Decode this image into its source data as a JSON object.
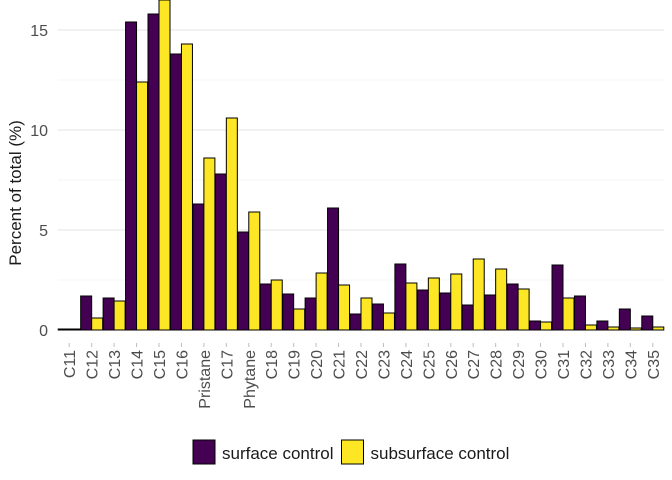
{
  "chart_data": {
    "type": "bar",
    "ylabel": "Percent of total (%)",
    "xlabel": "",
    "ylim": [
      0,
      16.5
    ],
    "yticks": [
      0,
      5,
      10,
      15
    ],
    "grid": true,
    "legend_position": "bottom",
    "categories": [
      "C11",
      "C12",
      "C13",
      "C14",
      "C15",
      "C16",
      "Pristane",
      "C17",
      "Phytane",
      "C18",
      "C19",
      "C20",
      "C21",
      "C22",
      "C23",
      "C24",
      "C25",
      "C26",
      "C27",
      "C28",
      "C29",
      "C30",
      "C31",
      "C32",
      "C33",
      "C34",
      "C35"
    ],
    "series": [
      {
        "name": "surface control",
        "color": "#440154",
        "values": [
          0.05,
          1.7,
          1.6,
          15.4,
          15.8,
          13.8,
          6.3,
          7.8,
          4.9,
          2.3,
          1.8,
          1.6,
          6.1,
          0.8,
          1.3,
          3.3,
          2.0,
          1.85,
          1.25,
          1.75,
          2.3,
          0.45,
          3.25,
          1.7,
          0.45,
          1.05,
          0.7
        ]
      },
      {
        "name": "subsurface control",
        "color": "#FDE725",
        "values": [
          0.05,
          0.6,
          1.45,
          12.4,
          16.5,
          14.3,
          8.6,
          10.6,
          5.9,
          2.5,
          1.05,
          2.85,
          2.25,
          1.6,
          0.85,
          2.35,
          2.6,
          2.8,
          3.55,
          3.05,
          2.05,
          0.4,
          1.6,
          0.25,
          0.15,
          0.1,
          0.15
        ]
      }
    ]
  }
}
